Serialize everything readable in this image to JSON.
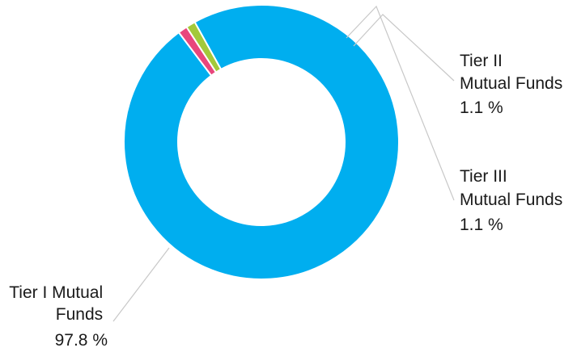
{
  "chart_data": {
    "type": "pie",
    "donut": true,
    "legend": "none",
    "slices": [
      {
        "name_lines": [
          "Tier I Mutual",
          "Funds"
        ],
        "value": 97.8,
        "label": "97.8 %",
        "color": "#00AEEF"
      },
      {
        "name_lines": [
          "Tier II",
          "Mutual Funds"
        ],
        "value": 1.1,
        "label": "1.1 %",
        "color": "#E8467C"
      },
      {
        "name_lines": [
          "Tier III",
          "Mutual Funds"
        ],
        "value": 1.1,
        "label": "1.1 %",
        "color": "#A3C93A"
      }
    ]
  }
}
